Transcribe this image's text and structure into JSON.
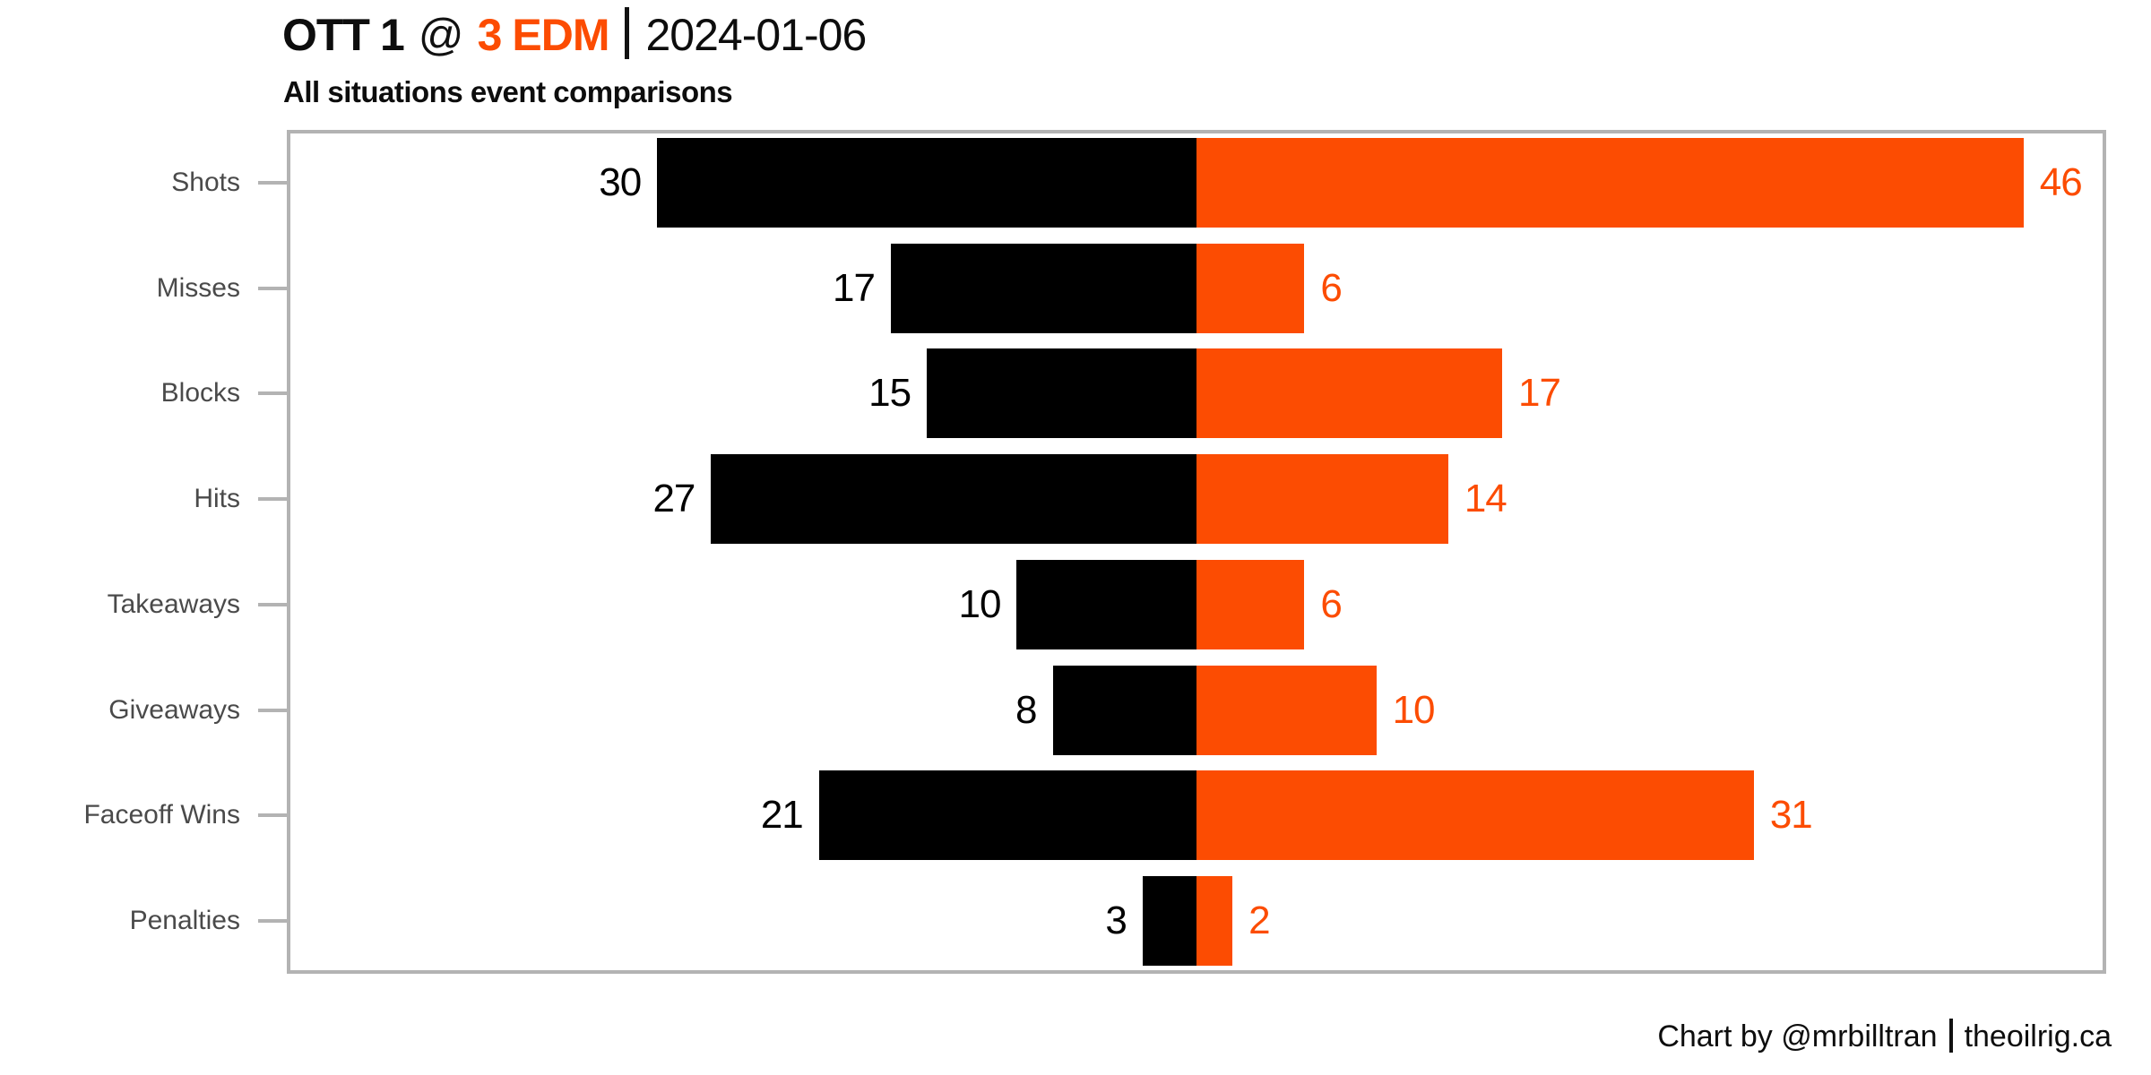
{
  "header": {
    "away_team": "OTT",
    "away_score": "1",
    "at_symbol": "@",
    "home_score": "3",
    "home_team": "EDM",
    "date": "2024-01-06",
    "subtitle": "All situations event comparisons"
  },
  "footer": {
    "credit": "Chart by @mrbilltran",
    "site": "theoilrig.ca"
  },
  "colors": {
    "away": "#000000",
    "home": "#FC4C02",
    "category_label": "#4a4a4a",
    "frame": "#b3b3b3",
    "title_text": "#0d0d0d"
  },
  "chart_data": {
    "type": "bar",
    "variant": "diverging-horizontal",
    "title": "OTT 1 @ 3 EDM | 2024-01-06",
    "subtitle": "All situations event comparisons",
    "categories": [
      "Shots",
      "Misses",
      "Blocks",
      "Hits",
      "Takeaways",
      "Giveaways",
      "Faceoff Wins",
      "Penalties"
    ],
    "series": [
      {
        "name": "OTT",
        "side": "left",
        "color": "#000000",
        "values": [
          30,
          17,
          15,
          27,
          10,
          8,
          21,
          3
        ]
      },
      {
        "name": "EDM",
        "side": "right",
        "color": "#FC4C02",
        "values": [
          46,
          6,
          17,
          14,
          6,
          10,
          31,
          2
        ]
      }
    ],
    "xlim": [
      -50.6,
      50.6
    ],
    "grid": false,
    "legend": false,
    "value_labels": true,
    "ylabel": "",
    "xlabel": ""
  }
}
